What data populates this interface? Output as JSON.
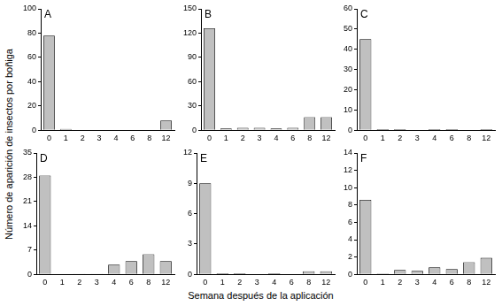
{
  "chart_data": [
    {
      "type": "bar",
      "title": "A",
      "categories": [
        "0",
        "1",
        "2",
        "3",
        "4",
        "6",
        "8",
        "12"
      ],
      "values": [
        78,
        1,
        0,
        0,
        0,
        0,
        0,
        8
      ],
      "color": "#c0c0c0",
      "ylim": [
        0,
        100
      ],
      "yticks": [
        0,
        20,
        40,
        60,
        80,
        100
      ],
      "grid": false
    },
    {
      "type": "bar",
      "title": "B",
      "categories": [
        "0",
        "1",
        "2",
        "3",
        "4",
        "6",
        "8",
        "12"
      ],
      "values": [
        126,
        2,
        3,
        3,
        2,
        3,
        16,
        16
      ],
      "color": "#c0c0c0",
      "ylim": [
        0,
        150
      ],
      "yticks": [
        0,
        30,
        60,
        90,
        120,
        150
      ],
      "grid": false
    },
    {
      "type": "bar",
      "title": "C",
      "categories": [
        "0",
        "1",
        "2",
        "3",
        "4",
        "6",
        "8",
        "12"
      ],
      "values": [
        45,
        0.5,
        0.5,
        0,
        0.5,
        0.5,
        0,
        0.5
      ],
      "color": "#c0c0c0",
      "ylim": [
        0,
        60
      ],
      "yticks": [
        0,
        10,
        20,
        30,
        40,
        50,
        60
      ],
      "grid": false
    },
    {
      "type": "bar",
      "title": "D",
      "categories": [
        "0",
        "1",
        "2",
        "3",
        "4",
        "6",
        "8",
        "12"
      ],
      "values": [
        28.5,
        0,
        0.2,
        0.2,
        2.8,
        3.8,
        5.8,
        3.8
      ],
      "color": "#c0c0c0",
      "ylim": [
        0,
        35
      ],
      "yticks": [
        0,
        7,
        14,
        21,
        28,
        35
      ],
      "grid": false
    },
    {
      "type": "bar",
      "title": "E",
      "categories": [
        "0",
        "1",
        "2",
        "3",
        "4",
        "6",
        "8",
        "12"
      ],
      "values": [
        9,
        0.1,
        0.1,
        0,
        0.1,
        0,
        0.3,
        0.3
      ],
      "color": "#c0c0c0",
      "ylim": [
        0,
        12
      ],
      "yticks": [
        0,
        3,
        6,
        9,
        12
      ],
      "grid": false
    },
    {
      "type": "bar",
      "title": "F",
      "categories": [
        "0",
        "1",
        "2",
        "3",
        "4",
        "6",
        "8",
        "12"
      ],
      "values": [
        8.6,
        0.1,
        0.5,
        0.4,
        0.8,
        0.6,
        1.4,
        1.9
      ],
      "color": "#c0c0c0",
      "ylim": [
        0,
        14
      ],
      "yticks": [
        0,
        2,
        4,
        6,
        8,
        10,
        12,
        14
      ],
      "grid": false
    }
  ],
  "xlabel": "Semana después de la aplicación",
  "ylabel": "Número de aparición de insectos  por boñiga"
}
